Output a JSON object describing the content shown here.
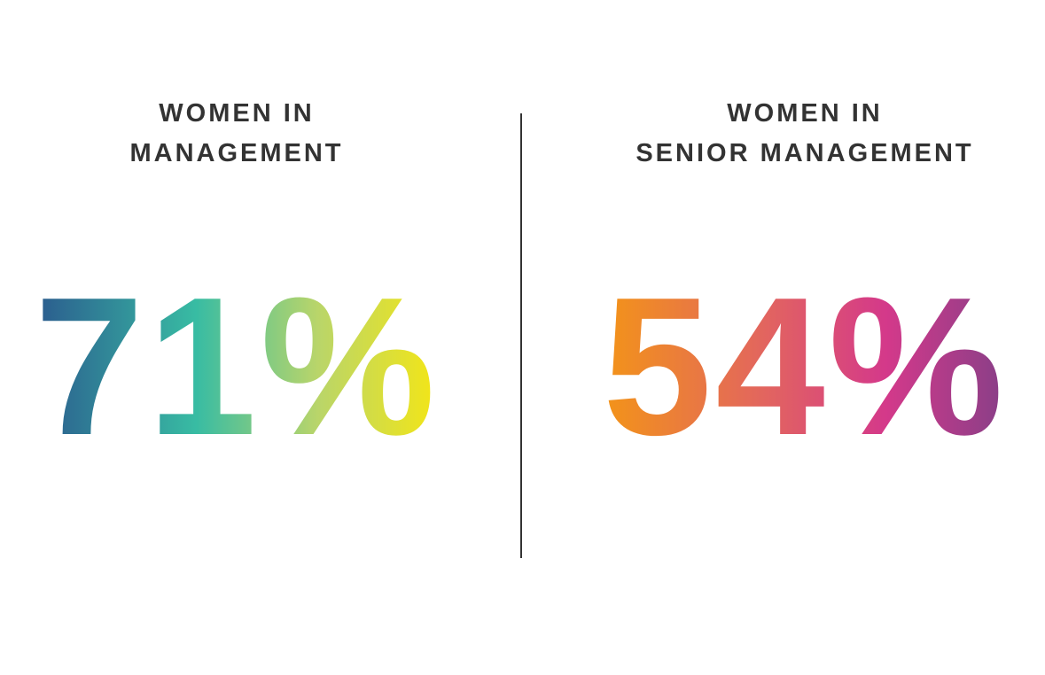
{
  "stats": [
    {
      "heading": [
        "WOMEN IN",
        "MANAGEMENT"
      ],
      "value": "71%"
    },
    {
      "heading": [
        "WOMEN IN",
        "SENIOR MANAGEMENT"
      ],
      "value": "54%"
    }
  ]
}
